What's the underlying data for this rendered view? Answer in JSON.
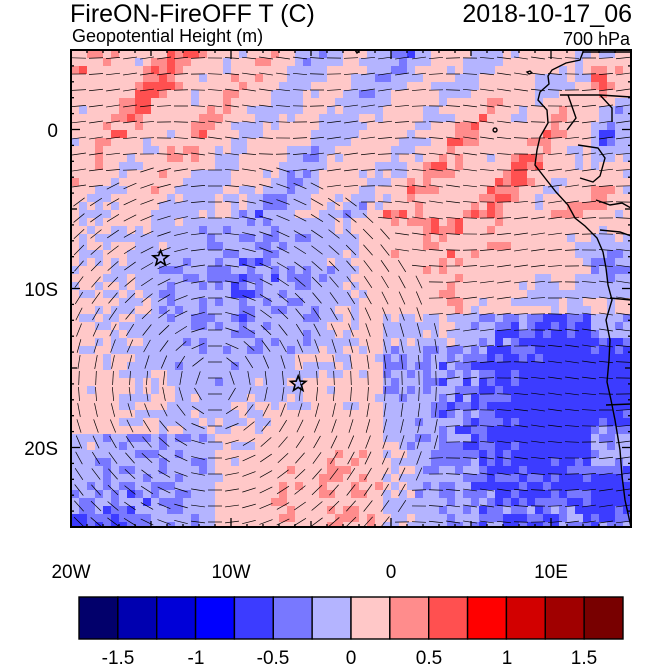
{
  "title": {
    "main": "FireON-FireOFF T (C)",
    "sub": "Geopotential Height (m)",
    "date": "2018-10-17_06",
    "level": "700 hPa"
  },
  "map": {
    "lon_range": [
      -20,
      15
    ],
    "lat_range": [
      -25,
      5
    ],
    "x_tick_labels": [
      "20W",
      "10W",
      "0",
      "10E"
    ],
    "y_tick_labels": [
      "0",
      "10S",
      "20S"
    ],
    "markers": [
      {
        "type": "star-icon",
        "lon": -14.4,
        "lat": -8.1
      },
      {
        "type": "star-icon",
        "lon": -5.8,
        "lat": -16.0
      }
    ]
  },
  "colorbar": {
    "colors": [
      "#02006b",
      "#0000b0",
      "#0000d8",
      "#0000ff",
      "#3c3cff",
      "#7878ff",
      "#b4b4ff",
      "#ffc8c8",
      "#ff8c8c",
      "#ff5050",
      "#ff0000",
      "#d20000",
      "#a00000",
      "#780000"
    ],
    "labels": [
      "-1.5",
      "-1",
      "-0.5",
      "0",
      "0.5",
      "1",
      "1.5"
    ]
  }
}
